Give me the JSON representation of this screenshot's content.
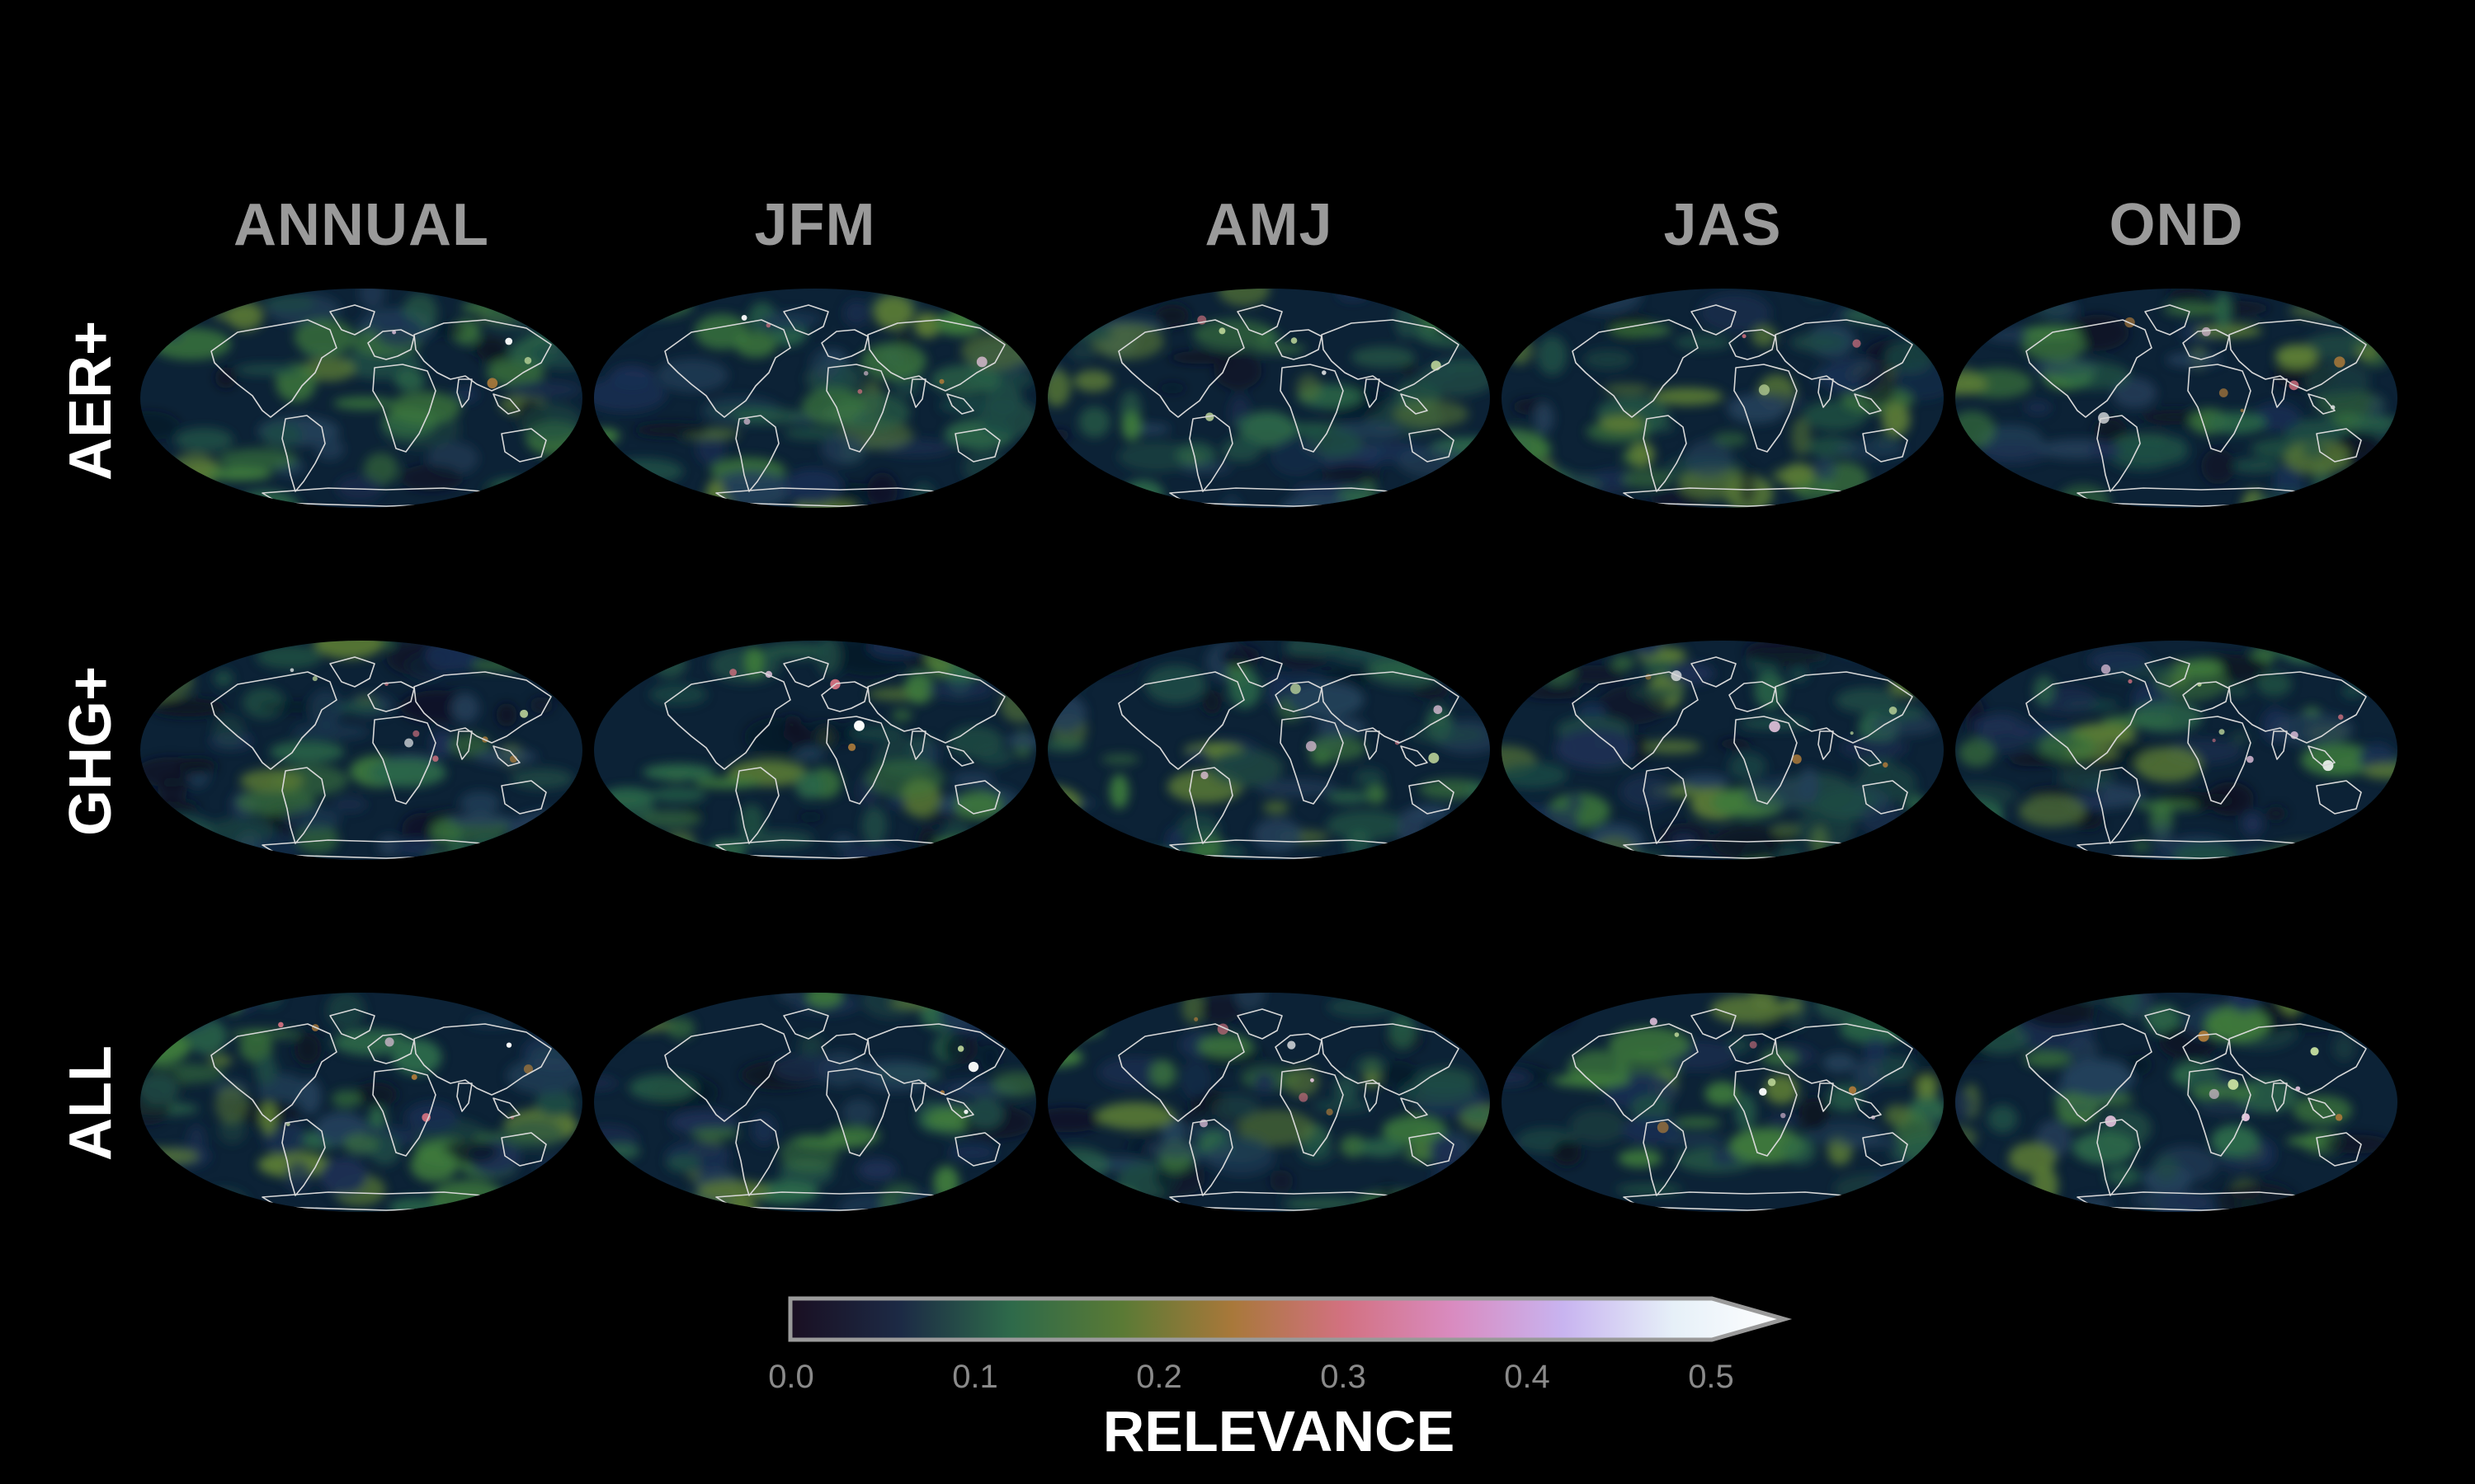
{
  "columns": [
    "ANNUAL",
    "JFM",
    "AMJ",
    "JAS",
    "OND"
  ],
  "rows": [
    "AER+",
    "GHG+",
    "ALL"
  ],
  "colorbar": {
    "label": "RELEVANCE",
    "ticks": [
      "0.0",
      "0.1",
      "0.2",
      "0.3",
      "0.4",
      "0.5"
    ],
    "range": [
      0.0,
      0.5
    ],
    "extend": "max",
    "colors": [
      "#1a0f22",
      "#1c2a45",
      "#2e6a4a",
      "#5a7a35",
      "#a8783a",
      "#d27180",
      "#d98bc0",
      "#c8b4f0",
      "#e6f0f8",
      "#ffffff"
    ]
  },
  "maps": {
    "projection": "Mollweide",
    "ocean_color": "#0c2236",
    "coast_color": "#d8d8d8"
  }
}
